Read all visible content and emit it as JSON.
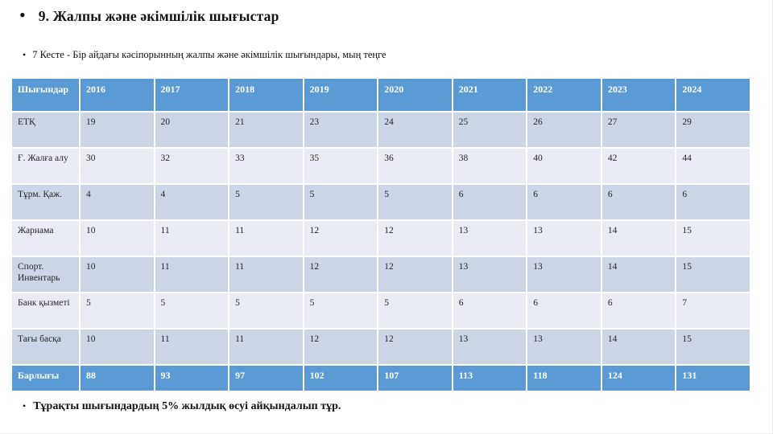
{
  "slide": {
    "title": "9. Жалпы және әкімшілік шығыстар",
    "subtitle": "7 Кесте - Бір айдағы кәсіпорынның жалпы және әкімшілік шығындары, мың теңге",
    "footer": "Тұрақты шығындардың 5% жылдық өсуі айқындалып тұр.",
    "title_bullet": "•",
    "subtitle_bullet": "•",
    "footer_bullet": "•"
  },
  "colors": {
    "header_bg": "#5b9bd5",
    "header_text": "#ffffff",
    "band_dark": "#ccd5e6",
    "band_light": "#e9ecf4",
    "body_text": "#262626"
  },
  "chart_data": {
    "type": "table",
    "title": "7 Кесте - Бір айдағы кәсіпорынның жалпы және әкімшілік шығындары, мың теңге",
    "columns": [
      "Шығындар",
      "2016",
      "2017",
      "2018",
      "2019",
      "2020",
      "2021",
      "2022",
      "2023",
      "2024"
    ],
    "rows": [
      {
        "label": "ЕТҚ",
        "values": [
          19,
          20,
          21,
          23,
          24,
          25,
          26,
          27,
          29
        ]
      },
      {
        "label": "Ғ. Жалға алу",
        "values": [
          30,
          32,
          33,
          35,
          36,
          38,
          40,
          42,
          44
        ]
      },
      {
        "label": "Тұрм. Қаж.",
        "values": [
          4,
          4,
          5,
          5,
          5,
          6,
          6,
          6,
          6
        ]
      },
      {
        "label": "Жарнама",
        "values": [
          10,
          11,
          11,
          12,
          12,
          13,
          13,
          14,
          15
        ]
      },
      {
        "label": "Спорт. Инвентарь",
        "values": [
          10,
          11,
          11,
          12,
          12,
          13,
          13,
          14,
          15
        ]
      },
      {
        "label": "Банк қызметі",
        "values": [
          5,
          5,
          5,
          5,
          5,
          6,
          6,
          6,
          7
        ]
      },
      {
        "label": "Тағы басқа",
        "values": [
          10,
          11,
          11,
          12,
          12,
          13,
          13,
          14,
          15
        ]
      },
      {
        "label": "Барлығы",
        "values": [
          88,
          93,
          97,
          102,
          107,
          113,
          118,
          124,
          131
        ],
        "is_total": true
      }
    ]
  }
}
